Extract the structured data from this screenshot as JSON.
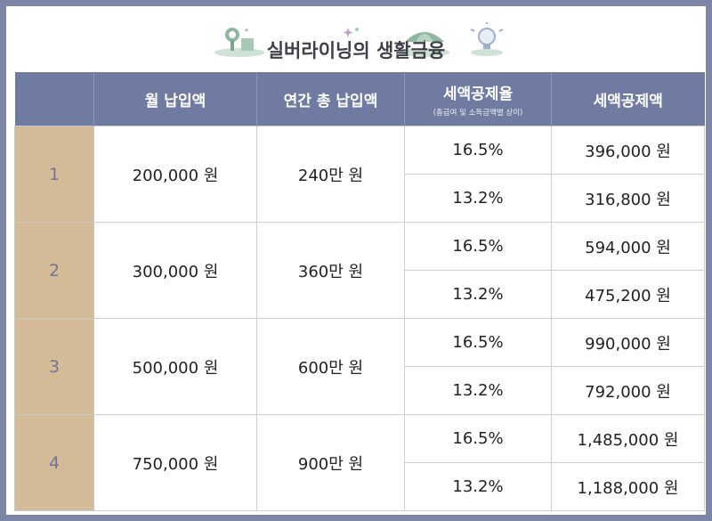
{
  "title": "실버라이닝의 생활금융",
  "colors": {
    "frame": "#7d86a6",
    "header_bg": "#6f7ba0",
    "index_bg": "#d4bb98",
    "deco_green": "#8fb7a0"
  },
  "header": {
    "columns": [
      "",
      "월 납입액",
      "연간 총 납입액",
      "세액공제율",
      "세액공제액"
    ],
    "rate_note": "(총급여 및 소득금액별 상이)"
  },
  "rows": [
    {
      "index": "1",
      "monthly": "200,000 원",
      "annual": "240만 원",
      "sub": [
        {
          "rate": "16.5%",
          "deduction": "396,000 원"
        },
        {
          "rate": "13.2%",
          "deduction": "316,800 원"
        }
      ]
    },
    {
      "index": "2",
      "monthly": "300,000 원",
      "annual": "360만 원",
      "sub": [
        {
          "rate": "16.5%",
          "deduction": "594,000 원"
        },
        {
          "rate": "13.2%",
          "deduction": "475,200 원"
        }
      ]
    },
    {
      "index": "3",
      "monthly": "500,000 원",
      "annual": "600만 원",
      "sub": [
        {
          "rate": "16.5%",
          "deduction": "990,000 원"
        },
        {
          "rate": "13.2%",
          "deduction": "792,000 원"
        }
      ]
    },
    {
      "index": "4",
      "monthly": "750,000 원",
      "annual": "900만 원",
      "sub": [
        {
          "rate": "16.5%",
          "deduction": "1,485,000 원"
        },
        {
          "rate": "13.2%",
          "deduction": "1,188,000 원"
        }
      ]
    }
  ]
}
